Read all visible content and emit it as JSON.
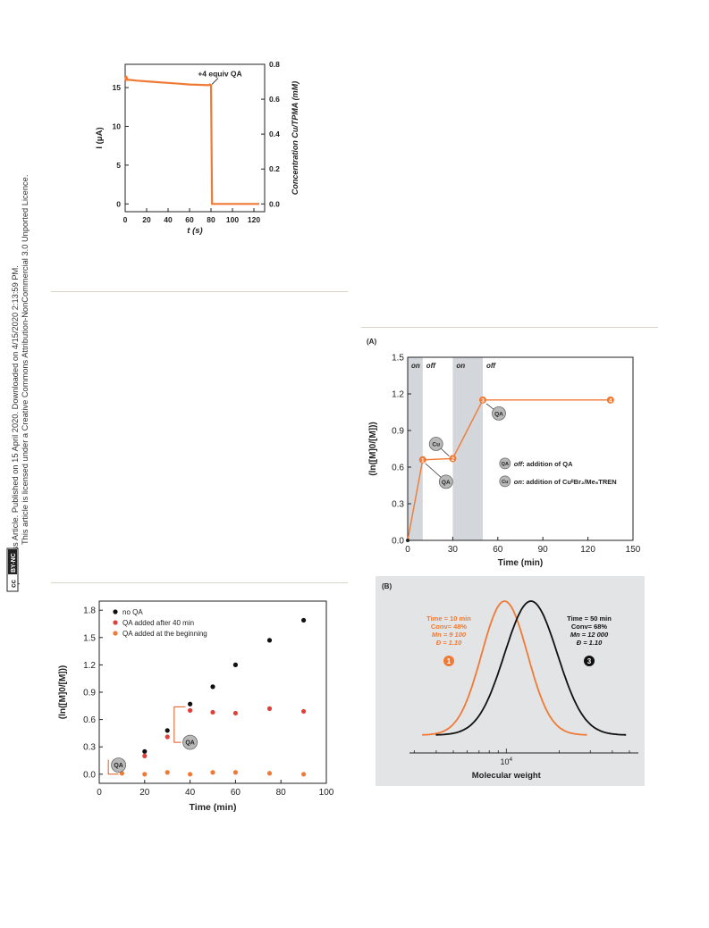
{
  "license": {
    "line1": "Open Access Article. Published on 15 April 2020. Downloaded on 4/15/2020 2:13:59 PM.",
    "line2": "This article is licensed under a Creative Commons Attribution-NonCommercial 3.0 Unported Licence.",
    "badge_cc": "cc",
    "badge_text": "BY-NC"
  },
  "chart_data": [
    {
      "type": "line",
      "xlabel": "t (s)",
      "ylabel": "I (μA)",
      "y2label": "Concentration Cu/TPMA (mM)",
      "xlim": [
        0,
        130
      ],
      "ylim": [
        -1,
        18
      ],
      "y2lim": [
        -0.0444,
        0.8
      ],
      "xticks": [
        "0",
        "20",
        "40",
        "60",
        "80",
        "100",
        "120"
      ],
      "yticks": [
        "0",
        "5",
        "10",
        "15"
      ],
      "y2ticks": [
        "0.0",
        "0.2",
        "0.4",
        "0.6",
        "0.8"
      ],
      "annotation": "+4 equiv QA",
      "series": [
        {
          "color": "#f07a35",
          "x": [
            0,
            1,
            2,
            4,
            10,
            20,
            30,
            40,
            50,
            60,
            70,
            78,
            79,
            80,
            81,
            100,
            125
          ],
          "y": [
            15.8,
            16.5,
            16.0,
            16.0,
            15.9,
            15.8,
            15.7,
            15.6,
            15.5,
            15.4,
            15.35,
            15.3,
            15.4,
            15.3,
            0.0,
            0.0,
            0.0
          ]
        }
      ],
      "grid": false
    },
    {
      "type": "scatter",
      "xlabel": "Time (min)",
      "ylabel": "(ln([M]0/[M]))",
      "xlim": [
        0,
        100
      ],
      "ylim": [
        -0.1,
        1.9
      ],
      "xticks": [
        "0",
        "20",
        "40",
        "60",
        "80",
        "100"
      ],
      "yticks": [
        "0.0",
        "0.3",
        "0.6",
        "0.9",
        "1.2",
        "1.5",
        "1.8"
      ],
      "legend_position": "top-left",
      "series": [
        {
          "name": "no QA",
          "color": "#111111",
          "x": [
            10,
            20,
            30,
            40,
            50,
            60,
            75,
            90
          ],
          "y": [
            0.07,
            0.25,
            0.48,
            0.77,
            0.96,
            1.2,
            1.47,
            1.69
          ]
        },
        {
          "name": "QA added after 40 min",
          "color": "#e0403a",
          "x": [
            10,
            20,
            30,
            40,
            50,
            60,
            75,
            90
          ],
          "y": [
            0.1,
            0.2,
            0.41,
            0.7,
            0.68,
            0.67,
            0.72,
            0.69
          ]
        },
        {
          "name": "QA added at the beginning",
          "color": "#f07a35",
          "x": [
            10,
            20,
            30,
            40,
            50,
            60,
            75,
            90
          ],
          "y": [
            0.01,
            0.0,
            0.02,
            0.0,
            0.02,
            0.02,
            0.01,
            0.0
          ]
        }
      ],
      "annotations": [
        "QA",
        "QA"
      ],
      "grid": false
    },
    {
      "type": "line",
      "panel_label": "(A)",
      "xlabel": "Time (min)",
      "ylabel": "(ln([M]0/[M]))",
      "xlim": [
        0,
        150
      ],
      "ylim": [
        0,
        1.5
      ],
      "xticks": [
        "0",
        "30",
        "60",
        "90",
        "120",
        "150"
      ],
      "yticks": [
        "0.0",
        "0.3",
        "0.6",
        "0.9",
        "1.2",
        "1.5"
      ],
      "regions": [
        {
          "label": "on",
          "from": 0,
          "to": 10,
          "shaded": true
        },
        {
          "label": "off",
          "from": 10,
          "to": 30,
          "shaded": false
        },
        {
          "label": "on",
          "from": 30,
          "to": 50,
          "shaded": true
        },
        {
          "label": "off",
          "from": 50,
          "to": 150,
          "shaded": false
        }
      ],
      "series": [
        {
          "color": "#f07a35",
          "x": [
            0,
            10,
            30,
            50,
            135
          ],
          "y": [
            0.0,
            0.66,
            0.67,
            1.15,
            1.15
          ],
          "point_labels": [
            "",
            "1",
            "2",
            "3",
            "4"
          ]
        }
      ],
      "callouts": [
        "QA",
        "Cu",
        "QA"
      ],
      "legend": [
        {
          "badge": "QA",
          "text_em": "off",
          "text": ": addition of QA"
        },
        {
          "badge": "Cu",
          "text_em": "on",
          "text": ": addition of CuᴵᴵBr₂/Me₆TREN"
        }
      ],
      "grid": false
    },
    {
      "type": "line",
      "panel_label": "(B)",
      "xlabel": "Molecular weight",
      "xtick_label": "10",
      "xtick_exp": "4",
      "x_scale": "log",
      "background": "#e2e4e6",
      "series": [
        {
          "color": "#f07a35",
          "peak_log10": 3.99,
          "sigma": 0.13,
          "labels": [
            "Time = 10 min",
            "Conv= 48%",
            "Mn = 9 100",
            "Đ = 1.10"
          ],
          "marker": "1"
        },
        {
          "color": "#111111",
          "peak_log10": 4.14,
          "sigma": 0.15,
          "labels": [
            "Time = 50 min",
            "Conv= 68%",
            "Mn = 12 000",
            "Đ = 1.10"
          ],
          "marker": "3"
        }
      ]
    }
  ]
}
